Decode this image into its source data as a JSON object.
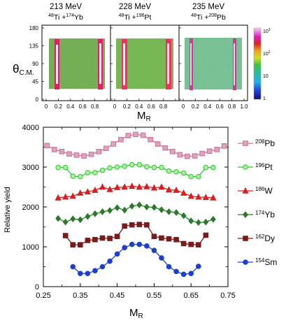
{
  "top_panels": {
    "ylabel_main": "θ",
    "ylabel_sub": "C.M.",
    "xlabel_main": "M",
    "xlabel_sub": "R",
    "y_ticks": [
      "180",
      "135",
      "90",
      "45",
      "0"
    ],
    "x_ticks": [
      "0",
      "0.2",
      "0.4",
      "0.6",
      "0.8",
      "1.0"
    ],
    "colorbar_ticks": [
      {
        "base": "10",
        "exp": "3"
      },
      {
        "base": "10",
        "exp": "2"
      },
      {
        "base": "10",
        "exp": ""
      },
      {
        "base": "1",
        "exp": ""
      }
    ],
    "panels": [
      {
        "energy": "213 MeV",
        "beam_mass": "48",
        "beam": "Ti",
        "plus": " +",
        "target_mass": "174",
        "target": "Yb"
      },
      {
        "energy": "228 MeV",
        "beam_mass": "48",
        "beam": "Ti",
        "plus": " +",
        "target_mass": "196",
        "target": "Pt"
      },
      {
        "energy": "235 MeV",
        "beam_mass": "48",
        "beam": "Ti",
        "plus": " +",
        "target_mass": "208",
        "target": "Pb"
      }
    ]
  },
  "chart_data": {
    "type": "line",
    "xlabel_main": "M",
    "xlabel_sub": "R",
    "ylabel": "Relative yield",
    "xlim": [
      0.25,
      0.75
    ],
    "ylim": [
      0,
      4000
    ],
    "x_ticks": [
      "0.25",
      "0.35",
      "0.45",
      "0.55",
      "0.65",
      "0.75"
    ],
    "y_ticks": [
      "0",
      "1000",
      "2000",
      "3000",
      "4000"
    ],
    "series": [
      {
        "mass": "208",
        "element": "Pb",
        "color": "#c9709a",
        "fill": "#dea3bd",
        "marker": "square",
        "x": [
          0.26,
          0.28,
          0.3,
          0.32,
          0.34,
          0.36,
          0.38,
          0.4,
          0.42,
          0.44,
          0.46,
          0.48,
          0.5,
          0.52,
          0.54,
          0.56,
          0.58,
          0.6,
          0.62,
          0.64,
          0.66,
          0.68,
          0.7,
          0.72,
          0.74
        ],
        "y": [
          3540,
          3440,
          3390,
          3330,
          3300,
          3280,
          3320,
          3390,
          3470,
          3580,
          3690,
          3790,
          3820,
          3800,
          3690,
          3580,
          3480,
          3390,
          3310,
          3270,
          3280,
          3340,
          3400,
          3440,
          3530
        ]
      },
      {
        "mass": "196",
        "element": "Pt",
        "color": "#2fc82f",
        "fill": "#a8f0a0",
        "marker": "circle",
        "x": [
          0.29,
          0.31,
          0.33,
          0.35,
          0.37,
          0.39,
          0.41,
          0.43,
          0.45,
          0.47,
          0.49,
          0.51,
          0.53,
          0.55,
          0.57,
          0.59,
          0.61,
          0.63,
          0.65,
          0.67,
          0.69,
          0.71
        ],
        "y": [
          2990,
          2990,
          2770,
          2760,
          2860,
          2860,
          2920,
          2980,
          3000,
          3020,
          3060,
          3060,
          3010,
          2990,
          2990,
          2900,
          2880,
          2850,
          2760,
          2760,
          2990,
          2990
        ]
      },
      {
        "mass": "186",
        "element": "W",
        "color": "#d81f1f",
        "fill": "#d81f1f",
        "marker": "triangle",
        "x": [
          0.29,
          0.31,
          0.33,
          0.35,
          0.37,
          0.39,
          0.41,
          0.43,
          0.45,
          0.47,
          0.49,
          0.51,
          0.53,
          0.55,
          0.57,
          0.59,
          0.61,
          0.63,
          0.65,
          0.67,
          0.69,
          0.71
        ],
        "y": [
          2230,
          2250,
          2270,
          2350,
          2380,
          2420,
          2500,
          2440,
          2490,
          2500,
          2520,
          2500,
          2510,
          2480,
          2500,
          2430,
          2420,
          2350,
          2270,
          2250,
          2240,
          2230
        ]
      },
      {
        "mass": "174",
        "element": "Yb",
        "color": "#2a7a2a",
        "fill": "#2a7a2a",
        "marker": "diamond",
        "x": [
          0.29,
          0.31,
          0.33,
          0.35,
          0.37,
          0.39,
          0.41,
          0.43,
          0.45,
          0.47,
          0.49,
          0.51,
          0.53,
          0.55,
          0.57,
          0.59,
          0.61,
          0.63,
          0.65,
          0.67,
          0.69,
          0.71
        ],
        "y": [
          1710,
          1620,
          1700,
          1680,
          1760,
          1830,
          1880,
          1910,
          1980,
          1920,
          2020,
          2050,
          2000,
          1990,
          1930,
          1880,
          1860,
          1780,
          1650,
          1610,
          1620,
          1690
        ]
      },
      {
        "mass": "162",
        "element": "Dy",
        "color": "#7a1a1a",
        "fill": "#7a1a1a",
        "marker": "square",
        "x": [
          0.31,
          0.33,
          0.35,
          0.37,
          0.39,
          0.41,
          0.43,
          0.45,
          0.47,
          0.49,
          0.51,
          0.53,
          0.55,
          0.57,
          0.59,
          0.61,
          0.63,
          0.65,
          0.67,
          0.69
        ],
        "y": [
          1280,
          1050,
          1050,
          1160,
          1180,
          1220,
          1210,
          1260,
          1520,
          1550,
          1560,
          1550,
          1260,
          1220,
          1200,
          1180,
          1080,
          1060,
          1050,
          1290
        ]
      },
      {
        "mass": "154",
        "element": "Sm",
        "color": "#1a3fd0",
        "fill": "#1a3fd0",
        "marker": "circle",
        "x": [
          0.33,
          0.35,
          0.37,
          0.39,
          0.41,
          0.43,
          0.45,
          0.47,
          0.49,
          0.51,
          0.53,
          0.55,
          0.57,
          0.59,
          0.61,
          0.63,
          0.65,
          0.67
        ],
        "y": [
          500,
          330,
          330,
          400,
          500,
          640,
          820,
          980,
          1060,
          1060,
          1020,
          910,
          720,
          500,
          380,
          310,
          330,
          510
        ]
      }
    ]
  }
}
